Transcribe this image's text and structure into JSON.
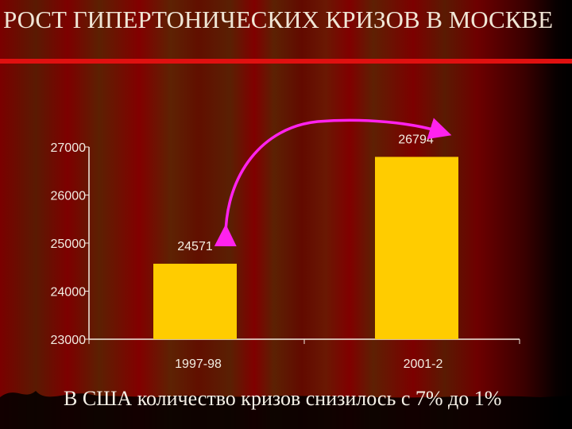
{
  "title": "РОСТ ГИПЕРТОНИЧЕСКИХ КРИЗОВ В МОСКВЕ",
  "caption": "В США количество кризов снизилось с 7% до 1%",
  "colors": {
    "bar": "#ffcc00",
    "arrow": "#ff22ee",
    "accent_line": "#e01010"
  },
  "chart_data": {
    "type": "bar",
    "categories": [
      "1997-98",
      "2001-2"
    ],
    "values": [
      24571,
      26794
    ],
    "data_labels": [
      "24571",
      "26794"
    ],
    "ylim": [
      23000,
      27000
    ],
    "yticks": [
      "23000",
      "24000",
      "25000",
      "26000",
      "27000"
    ],
    "grid": false,
    "annotation": "curved arrow linking bars"
  }
}
